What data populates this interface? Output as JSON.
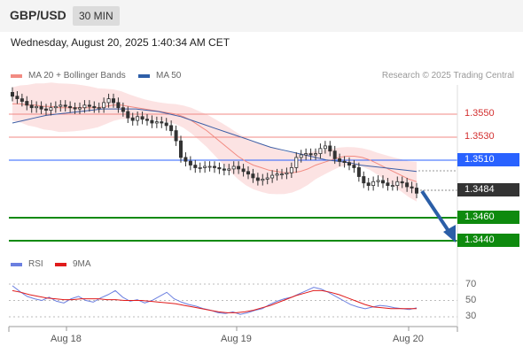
{
  "header": {
    "symbol": "GBP/USD",
    "timeframe": "30 MIN"
  },
  "timestamp": "Wednesday, August 20, 2025 1:40:34 AM CET",
  "legend": {
    "ma20": {
      "label": "MA 20 + Bollinger Bands",
      "color": "#f28b82"
    },
    "ma50": {
      "label": "MA 50",
      "color": "#2e5fa8"
    },
    "credit": "Research © 2025 Trading Central"
  },
  "levels": [
    {
      "value": "1.3550",
      "kind": "resistance",
      "color": "#e53935"
    },
    {
      "value": "1.3530",
      "kind": "resistance",
      "color": "#e53935"
    },
    {
      "value": "1.3510",
      "kind": "pivot",
      "color": "#2962ff"
    },
    {
      "value": "1.3484",
      "kind": "last",
      "color": "#333333"
    },
    {
      "value": "1.3460",
      "kind": "support",
      "color": "#0e8a0e"
    },
    {
      "value": "1.3440",
      "kind": "support",
      "color": "#0e8a0e"
    }
  ],
  "rsi": {
    "legend_rsi": "RSI",
    "legend_9ma": "9MA",
    "rsi_color": "#6b7fe0",
    "ma_color": "#e01b1b",
    "ticks": [
      "70",
      "50",
      "30"
    ]
  },
  "x_axis": [
    "Aug 18",
    "Aug 19",
    "Aug 20"
  ],
  "chart_data": {
    "type": "candlestick",
    "instrument": "GBP/USD",
    "timeframe": "30 MIN",
    "ylim": [
      1.3437,
      1.3573
    ],
    "x_labels": [
      "Aug 18",
      "Aug 19",
      "Aug 20"
    ],
    "close": [
      1.356,
      1.3558,
      1.3556,
      1.3553,
      1.3551,
      1.3552,
      1.355,
      1.3549,
      1.3551,
      1.3552,
      1.3553,
      1.3552,
      1.3551,
      1.355,
      1.3551,
      1.3553,
      1.3552,
      1.3551,
      1.3551,
      1.3555,
      1.3558,
      1.3555,
      1.3551,
      1.3548,
      1.3543,
      1.3541,
      1.3544,
      1.3542,
      1.3541,
      1.3539,
      1.354,
      1.3539,
      1.3537,
      1.3533,
      1.3525,
      1.3512,
      1.3509,
      1.3506,
      1.3504,
      1.3504,
      1.3505,
      1.3505,
      1.3504,
      1.3503,
      1.3502,
      1.3503,
      1.3505,
      1.3503,
      1.3501,
      1.3499,
      1.3496,
      1.3494,
      1.3495,
      1.3496,
      1.3498,
      1.3499,
      1.3499,
      1.35,
      1.3504,
      1.3512,
      1.3514,
      1.3515,
      1.3514,
      1.3515,
      1.3519,
      1.3521,
      1.3517,
      1.3511,
      1.3509,
      1.3508,
      1.3506,
      1.3504,
      1.3497,
      1.3492,
      1.349,
      1.3493,
      1.3494,
      1.3492,
      1.349,
      1.349,
      1.3493,
      1.3492,
      1.3489,
      1.3488,
      1.3484
    ],
    "ma20": [
      1.3554,
      1.3554,
      1.3553,
      1.3553,
      1.3552,
      1.3552,
      1.3551,
      1.3551,
      1.3551,
      1.3551,
      1.3551,
      1.3551,
      1.3552,
      1.3553,
      1.3553,
      1.3552,
      1.3551,
      1.355,
      1.3549,
      1.3548,
      1.3547,
      1.3546,
      1.3544,
      1.3541,
      1.3537,
      1.3533,
      1.3528,
      1.3523,
      1.3518,
      1.3513,
      1.3509,
      1.3506,
      1.3504,
      1.3502,
      1.3501,
      1.35,
      1.35,
      1.3501,
      1.3503,
      1.3506,
      1.3508,
      1.351,
      1.3512,
      1.3513,
      1.3513,
      1.3512,
      1.351,
      1.3507,
      1.3504,
      1.3501,
      1.3498,
      1.3495,
      1.3493
    ],
    "ma50": [
      1.3539,
      1.3541,
      1.3543,
      1.3545,
      1.3546,
      1.3547,
      1.3548,
      1.3549,
      1.355,
      1.355,
      1.355,
      1.355,
      1.3549,
      1.3548,
      1.3546,
      1.3544,
      1.3541,
      1.3538,
      1.3535,
      1.3532,
      1.3529,
      1.3526,
      1.3523,
      1.352,
      1.3518,
      1.3516,
      1.3514,
      1.3512,
      1.351,
      1.3509,
      1.3508,
      1.3506,
      1.3505,
      1.3504,
      1.3503,
      1.3502,
      1.3501
    ],
    "rsi": [
      68,
      61,
      55,
      52,
      50,
      54,
      49,
      47,
      52,
      55,
      50,
      48,
      53,
      57,
      62,
      54,
      49,
      51,
      47,
      50,
      55,
      60,
      52,
      48,
      45,
      43,
      40,
      38,
      35,
      34,
      36,
      33,
      35,
      38,
      40,
      45,
      49,
      52,
      54,
      58,
      62,
      66,
      64,
      60,
      55,
      50,
      45,
      42,
      40,
      42,
      44,
      43,
      41,
      40,
      39,
      41
    ],
    "rsi_9ma": [
      62,
      60,
      57,
      55,
      53,
      52,
      51,
      51,
      52,
      52,
      52,
      51,
      51,
      50,
      50,
      50,
      49,
      48,
      47,
      46,
      44,
      42,
      40,
      38,
      36,
      35,
      35,
      36,
      38,
      41,
      44,
      48,
      52,
      56,
      59,
      62,
      62,
      60,
      57,
      53,
      49,
      45,
      42,
      41,
      40,
      40,
      40,
      40
    ]
  }
}
